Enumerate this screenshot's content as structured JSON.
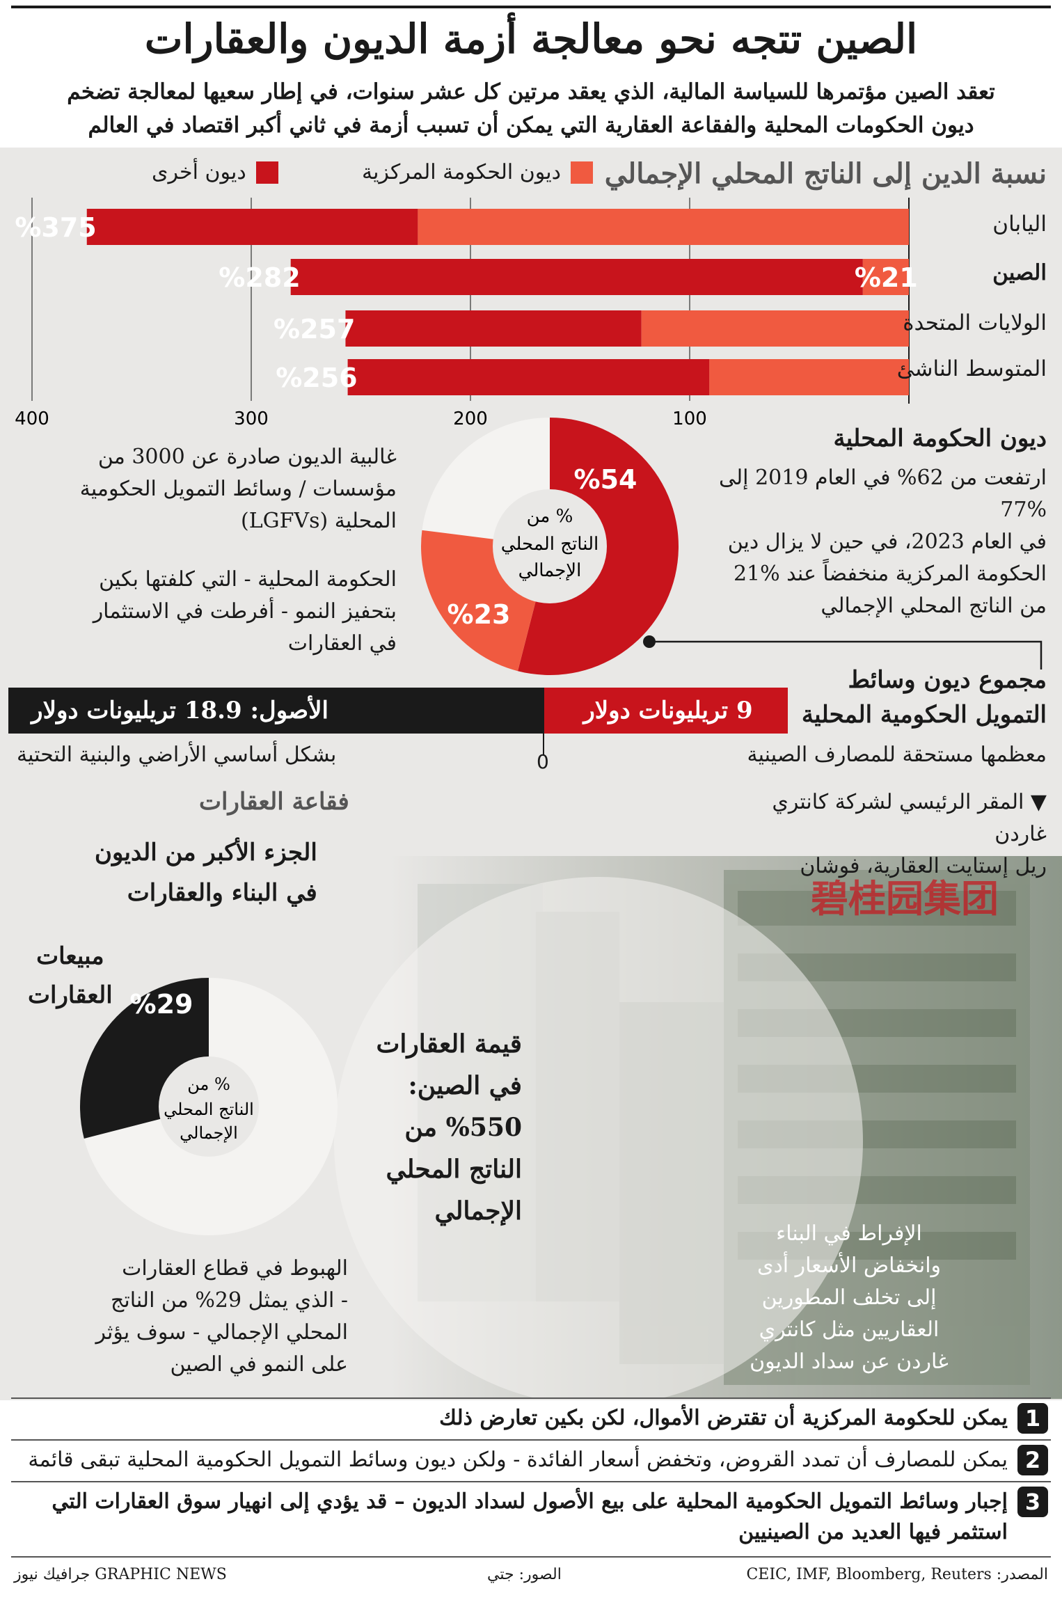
{
  "header": {
    "title": "الصين تتجه نحو معالجة أزمة الديون والعقارات",
    "subtitle_line1": "تعقد الصين مؤتمرها للسياسة المالية، الذي يعقد مرتين كل عشر سنوات، في إطار سعيها لمعالجة تضخم",
    "subtitle_line2": "ديون الحكومات المحلية والفقاعة العقارية التي يمكن أن تسبب أزمة في ثاني أكبر اقتصاد في العالم"
  },
  "chart_data": {
    "type": "bar",
    "title": "نسبة الدين إلى الناتج المحلي الإجمالي",
    "legend": [
      {
        "name": "ديون الحكومة المركزية",
        "color": "#f05a40"
      },
      {
        "name": "ديون أخرى",
        "color": "#c8141c"
      }
    ],
    "categories": [
      "اليابان",
      "الصين",
      "الولايات المتحدة",
      "المتوسط الناشئ"
    ],
    "totals": [
      375,
      282,
      257,
      256
    ],
    "total_labels": [
      "%375",
      "%282",
      "%257",
      "%256"
    ],
    "central_gov": [
      224,
      21,
      122,
      91
    ],
    "central_labels": [
      "",
      "%21",
      "",
      ""
    ],
    "x_ticks": [
      100,
      200,
      300,
      400
    ],
    "xlim": [
      0,
      400
    ],
    "colors": {
      "central": "#f05a40",
      "other": "#c8141c"
    }
  },
  "local_gov": {
    "heading": "ديون الحكومة المحلية",
    "body": [
      "ارتفعت من 62% في العام 2019 إلى %77",
      "في العام 2023، في حين لا يزال دين",
      "الحكومة المركزية منخفضاً عند %21",
      "من الناتج المحلي الإجمالي"
    ],
    "note1": [
      "غالبية الديون صادرة عن 3000 من",
      "مؤسسات / وسائط التمويل الحكومية",
      "المحلية (LGFVs)"
    ],
    "note2": [
      "الحكومة المحلية - التي كلفتها بكين",
      "بتحفيز النمو - أفرطت في الاستثمار",
      "في العقارات"
    ],
    "donut": {
      "segments": [
        {
          "value": 54,
          "label": "%54",
          "color": "#c8141c"
        },
        {
          "value": 23,
          "label": "%23",
          "color": "#f05a40"
        },
        {
          "value": 23,
          "label": "",
          "color": "#f4f3f1"
        }
      ],
      "center": [
        "% من",
        "الناتج المحلي",
        "الإجمالي"
      ]
    }
  },
  "lgfv": {
    "heading": [
      "مجموع ديون وسائط",
      "التمويل الحكومية المحلية"
    ],
    "debt_label": "9 تريليونات دولار",
    "debt_value": 9,
    "assets_label": "الأصول: 18.9 تريليونات دولار",
    "assets_value": 18.9,
    "zero": "0",
    "debt_note": "معظمها مستحقة للمصارف الصينية",
    "assets_note": "بشكل أساسي الأراضي والبنية التحتية"
  },
  "property": {
    "heading": "فقاعة العقارات",
    "subheading": [
      "الجزء الأكبر من الديون",
      "في البناء والعقارات"
    ],
    "photo_caption": [
      "▼ المقر الرئيسي لشركة كانتري غاردن",
      "ريل إستايت العقارية، فوشان"
    ],
    "sales_label": [
      "مبيعات",
      "العقارات"
    ],
    "sales_pct": "%29",
    "sales_value": 29,
    "pie_center": [
      "% من",
      "الناتج المحلي",
      "الإجمالي"
    ],
    "value_text": [
      "قيمة العقارات",
      "في الصين:",
      "%550 من",
      "الناتج المحلي",
      "الإجمالي"
    ],
    "decline_text": [
      "الهبوط في قطاع العقارات",
      "- الذي يمثل 29% من الناتج",
      "المحلي الإجمالي - سوف يؤثر",
      "على النمو في الصين"
    ],
    "overbuild_text": [
      "الإفراط في البناء",
      "وانخفاض الأسعار أدى",
      "إلى تخلف المطورين",
      "العقاريين مثل كانتري",
      "غاردن عن سداد الديون"
    ],
    "sign_text": "碧桂园集团",
    "colors": {
      "sales": "#1a1a1a",
      "photo_bg": "#9aa198"
    }
  },
  "steps": [
    {
      "num": "1",
      "text": "يمكن للحكومة المركزية أن تقترض الأموال، لكن بكين تعارض ذلك"
    },
    {
      "num": "2",
      "text": "يمكن للمصارف أن تمدد القروض، وتخفض أسعار الفائدة - ولكن ديون وسائط التمويل الحكومية المحلية تبقى قائمة"
    },
    {
      "num": "3",
      "text": "إجبار وسائط التمويل الحكومية المحلية على بيع الأصول لسداد الديون – قد يؤدي إلى انهيار سوق العقارات التي استثمر فيها العديد من الصينيين"
    }
  ],
  "footer": {
    "source": "المصدر: CEIC, IMF, Bloomberg, Reuters",
    "photos": "الصور: جتي",
    "brand": "GRAPHIC NEWS جرافيك نيوز"
  }
}
